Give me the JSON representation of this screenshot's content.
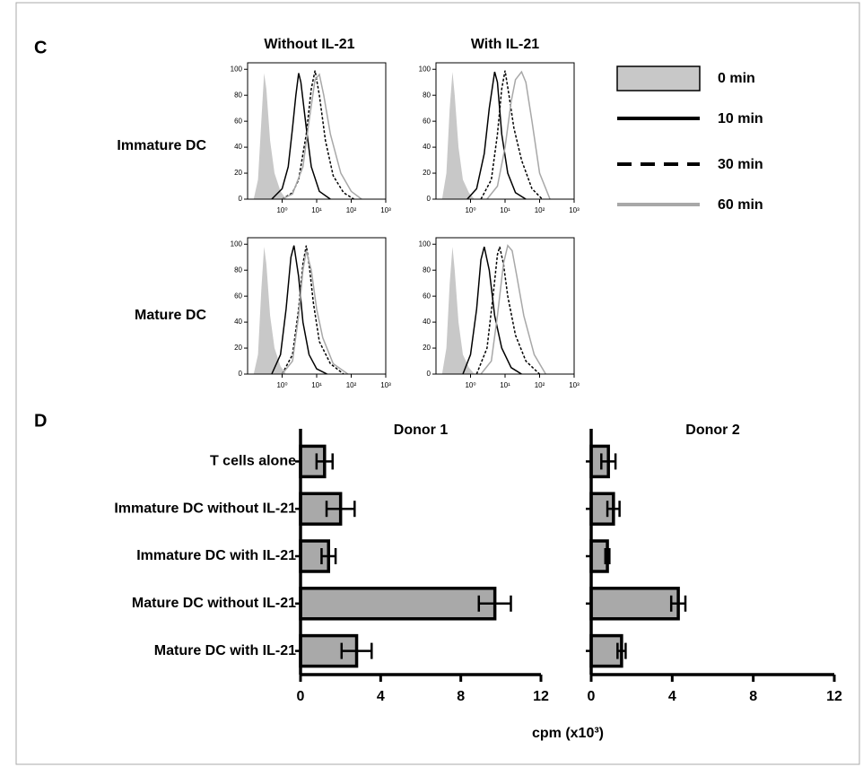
{
  "panel_labels": [
    "C",
    "D"
  ],
  "column_titles": [
    "Without IL-21",
    "With IL-21"
  ],
  "row_titles": [
    "Immature DC",
    "Mature DC"
  ],
  "legend": [
    {
      "name": "0 min",
      "color": "#c8c8c8",
      "style": "fill"
    },
    {
      "name": "10 min",
      "color": "#000000",
      "style": "solid"
    },
    {
      "name": "30 min",
      "color": "#000000",
      "style": "dashed"
    },
    {
      "name": "60 min",
      "color": "#a8a8a8",
      "style": "solid"
    }
  ],
  "bar_x_label": "cpm (x10³)",
  "chart_data": [
    {
      "type": "line",
      "log_x": true,
      "xlim": [
        0.1,
        1000
      ],
      "ylim": [
        0,
        105
      ],
      "xticks": [
        {
          "value": 1,
          "label": "10⁰"
        },
        {
          "value": 10,
          "label": "10¹"
        },
        {
          "value": 100,
          "label": "10²"
        },
        {
          "value": 1000,
          "label": "10³"
        }
      ],
      "yticks": [
        0,
        20,
        40,
        60,
        80,
        100
      ],
      "series": [
        {
          "x": [
            0.15,
            0.2,
            0.25,
            0.3,
            0.35,
            0.45,
            0.6,
            0.9,
            1.3
          ],
          "values": [
            0,
            15,
            60,
            97,
            85,
            45,
            20,
            6,
            0
          ]
        },
        {
          "x": [
            0.5,
            1,
            1.5,
            2,
            2.5,
            3,
            3.5,
            5,
            7,
            12,
            25
          ],
          "values": [
            0,
            8,
            25,
            55,
            80,
            97,
            90,
            55,
            25,
            6,
            0
          ]
        },
        {
          "x": [
            1,
            2,
            3,
            5,
            7,
            9,
            12,
            18,
            30,
            60,
            120
          ],
          "values": [
            0,
            5,
            15,
            50,
            85,
            99,
            80,
            45,
            18,
            5,
            0
          ]
        },
        {
          "x": [
            1,
            2,
            4,
            6,
            9,
            12,
            16,
            25,
            50,
            100,
            200
          ],
          "values": [
            0,
            4,
            25,
            60,
            92,
            96,
            80,
            50,
            20,
            6,
            0
          ]
        }
      ]
    },
    {
      "type": "line",
      "log_x": true,
      "xlim": [
        0.1,
        1000
      ],
      "ylim": [
        0,
        105
      ],
      "xticks": [
        {
          "value": 1,
          "label": "10⁰"
        },
        {
          "value": 10,
          "label": "10¹"
        },
        {
          "value": 100,
          "label": "10²"
        },
        {
          "value": 1000,
          "label": "10³"
        }
      ],
      "yticks": [
        0,
        20,
        40,
        60,
        80,
        100
      ],
      "series": [
        {
          "x": [
            0.15,
            0.2,
            0.25,
            0.3,
            0.35,
            0.45,
            0.6,
            0.9,
            1.3
          ],
          "values": [
            0,
            20,
            70,
            98,
            80,
            40,
            15,
            5,
            0
          ]
        },
        {
          "x": [
            0.8,
            1.5,
            2.5,
            3.5,
            5,
            6,
            8,
            12,
            20,
            40
          ],
          "values": [
            0,
            8,
            35,
            70,
            98,
            90,
            50,
            20,
            5,
            0
          ]
        },
        {
          "x": [
            2,
            4,
            6,
            8,
            10,
            13,
            18,
            30,
            60,
            120
          ],
          "values": [
            0,
            15,
            50,
            85,
            99,
            80,
            55,
            30,
            8,
            0
          ]
        },
        {
          "x": [
            3,
            6,
            10,
            15,
            20,
            30,
            40,
            60,
            100,
            200
          ],
          "values": [
            0,
            10,
            40,
            75,
            92,
            98,
            90,
            60,
            20,
            0
          ]
        }
      ]
    },
    {
      "type": "line",
      "log_x": true,
      "xlim": [
        0.1,
        1000
      ],
      "ylim": [
        0,
        105
      ],
      "xticks": [
        {
          "value": 1,
          "label": "10⁰"
        },
        {
          "value": 10,
          "label": "10¹"
        },
        {
          "value": 100,
          "label": "10²"
        },
        {
          "value": 1000,
          "label": "10³"
        }
      ],
      "yticks": [
        0,
        20,
        40,
        60,
        80,
        100
      ],
      "series": [
        {
          "x": [
            0.15,
            0.2,
            0.25,
            0.3,
            0.35,
            0.45,
            0.6,
            0.9,
            1.3
          ],
          "values": [
            0,
            15,
            65,
            98,
            85,
            45,
            20,
            6,
            0
          ]
        },
        {
          "x": [
            0.5,
            0.9,
            1.3,
            1.8,
            2.2,
            3,
            4,
            6,
            10,
            20
          ],
          "values": [
            0,
            15,
            50,
            90,
            99,
            75,
            40,
            15,
            4,
            0
          ]
        },
        {
          "x": [
            1,
            2,
            3,
            4,
            5,
            6,
            8,
            12,
            25,
            60
          ],
          "values": [
            0,
            15,
            50,
            85,
            99,
            85,
            55,
            25,
            8,
            0
          ]
        },
        {
          "x": [
            1,
            2,
            3,
            4,
            5,
            7,
            10,
            15,
            30,
            80
          ],
          "values": [
            0,
            10,
            45,
            80,
            95,
            80,
            50,
            28,
            8,
            0
          ]
        }
      ]
    },
    {
      "type": "line",
      "log_x": true,
      "xlim": [
        0.1,
        1000
      ],
      "ylim": [
        0,
        105
      ],
      "xticks": [
        {
          "value": 1,
          "label": "10⁰"
        },
        {
          "value": 10,
          "label": "10¹"
        },
        {
          "value": 100,
          "label": "10²"
        },
        {
          "value": 1000,
          "label": "10³"
        }
      ],
      "yticks": [
        0,
        20,
        40,
        60,
        80,
        100
      ],
      "series": [
        {
          "x": [
            0.15,
            0.2,
            0.25,
            0.3,
            0.35,
            0.45,
            0.6,
            0.9,
            1.3
          ],
          "values": [
            0,
            20,
            70,
            98,
            80,
            40,
            15,
            5,
            0
          ]
        },
        {
          "x": [
            0.6,
            1,
            1.5,
            2,
            2.5,
            3.5,
            5,
            8,
            15,
            30
          ],
          "values": [
            0,
            15,
            50,
            88,
            98,
            80,
            45,
            20,
            5,
            0
          ]
        },
        {
          "x": [
            1.5,
            3,
            4.5,
            6,
            7,
            9,
            12,
            20,
            40,
            100
          ],
          "values": [
            0,
            20,
            60,
            92,
            98,
            85,
            60,
            30,
            10,
            0
          ]
        },
        {
          "x": [
            2,
            4,
            6,
            9,
            12,
            16,
            22,
            35,
            70,
            150
          ],
          "values": [
            0,
            10,
            45,
            85,
            99,
            95,
            75,
            45,
            15,
            0
          ]
        }
      ]
    },
    {
      "type": "bar",
      "title": "Donor 1",
      "color": "#a9a9a9",
      "categories": [
        "T cells alone",
        "Immature DC without IL-21",
        "Immature DC with IL-21",
        "Mature DC without IL-21",
        "Mature DC with IL-21"
      ],
      "values": [
        1.2,
        2.0,
        1.4,
        9.7,
        2.8
      ],
      "errors": [
        0.4,
        0.7,
        0.35,
        0.8,
        0.75
      ],
      "xlim": [
        0,
        12
      ],
      "xticks": [
        0,
        4,
        8,
        12
      ]
    },
    {
      "type": "bar",
      "title": "Donor 2",
      "color": "#a9a9a9",
      "values": [
        0.85,
        1.1,
        0.8,
        4.3,
        1.5
      ],
      "errors": [
        0.35,
        0.3,
        0.1,
        0.35,
        0.2
      ],
      "xlim": [
        0,
        12
      ],
      "xticks": [
        0,
        4,
        8,
        12
      ]
    }
  ]
}
